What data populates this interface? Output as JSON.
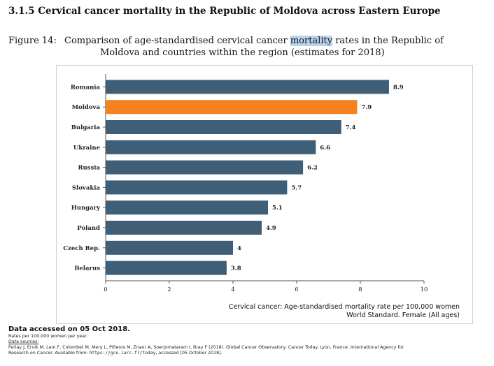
{
  "section": {
    "title": "3.1.5  Cervical cancer mortality in the Republic of Moldova across Eastern Europe"
  },
  "figure": {
    "label": "Figure 14:",
    "caption_before": "Comparison of age-standardised cervical cancer ",
    "caption_highlight": "mortality",
    "caption_after": " rates in the Republic of",
    "caption_line2": "Moldova and countries within the region (estimates for 2018)"
  },
  "chart_data": {
    "type": "bar",
    "orientation": "horizontal",
    "categories": [
      "Romania",
      "Moldova",
      "Bulgaria",
      "Ukraine",
      "Russia",
      "Slovakia",
      "Hungary",
      "Poland",
      "Czech Rep.",
      "Belarus"
    ],
    "values": [
      8.9,
      7.9,
      7.4,
      6.6,
      6.2,
      5.7,
      5.1,
      4.9,
      4,
      3.8
    ],
    "value_labels": [
      "8.9",
      "7.9",
      "7.4",
      "6.6",
      "6.2",
      "5.7",
      "5.1",
      "4.9",
      "4",
      "3.8"
    ],
    "highlight_category": "Moldova",
    "bar_color": "#3f5f78",
    "highlight_color": "#f5821f",
    "xlim": [
      0,
      10
    ],
    "xticks": [
      "0",
      "2",
      "4",
      "6",
      "8",
      "10"
    ],
    "xlabel": "Cervical cancer: Age-standardised mortality rate per 100,000 women",
    "xlabel_line2": "World Standard. Female (All ages)",
    "grid": false
  },
  "footer": {
    "accessed": "Data accessed on 05 Oct 2018.",
    "rates_note": "Rates per 100,000 women per year.",
    "sources_head": "Data sources:",
    "sources_text": "Ferlay J, Ervik M, Lam F, Colombet M, Mery L, Piñeros M, Znaor A, Soerjomataram I, Bray F (2018). Global Cancer Observatory: Cancer Today. Lyon, France: International Agency for",
    "sources_text2": "Research on Cancer. Available from: ",
    "sources_url": "https://gco.iarc.fr/today",
    "sources_text3": ", accessed [05 October 2018]."
  }
}
